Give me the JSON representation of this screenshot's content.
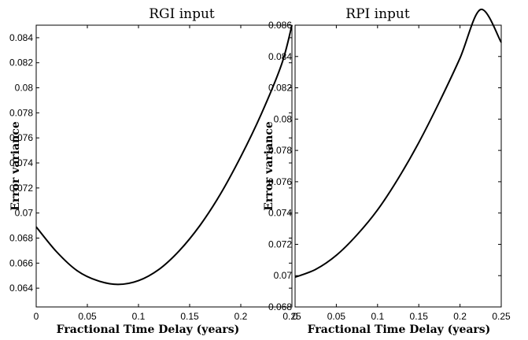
{
  "chart_data": [
    {
      "type": "line",
      "title": "RGI input",
      "xlabel": "Fractional Time Delay (years)",
      "ylabel": "Error variance",
      "xlim": [
        0,
        0.25
      ],
      "ylim": [
        0.0625,
        0.085
      ],
      "xticks": [
        "0",
        "0.05",
        "0.1",
        "0.15",
        "0.2",
        "0.25"
      ],
      "yticks": [
        "0.064",
        "0.066",
        "0.068",
        "0.07",
        "0.072",
        "0.074",
        "0.076",
        "0.078",
        "0.08",
        "0.082",
        "0.084"
      ],
      "grid": false,
      "series": [
        {
          "x": [
            0,
            0.02,
            0.04,
            0.06,
            0.08,
            0.1,
            0.12,
            0.14,
            0.16,
            0.18,
            0.2,
            0.22,
            0.24,
            0.25
          ],
          "y": [
            0.0689,
            0.0669,
            0.0654,
            0.0646,
            0.0643,
            0.0646,
            0.0655,
            0.067,
            0.069,
            0.0715,
            0.0745,
            0.0779,
            0.0819,
            0.085
          ]
        }
      ]
    },
    {
      "type": "line",
      "title": "RPI input",
      "xlabel": "Fractional Time Delay (years)",
      "ylabel": "Error variance",
      "xlim": [
        0,
        0.25
      ],
      "ylim": [
        0.068,
        0.086
      ],
      "xticks": [
        "0",
        "0.05",
        "0.1",
        "0.15",
        "0.2",
        "0.25"
      ],
      "yticks": [
        "0.068",
        "0.07",
        "0.072",
        "0.074",
        "0.076",
        "0.078",
        "0.08",
        "0.082",
        "0.084",
        "0.086"
      ],
      "grid": false,
      "series": [
        {
          "x": [
            0,
            0.025,
            0.05,
            0.075,
            0.1,
            0.125,
            0.15,
            0.175,
            0.2,
            0.225,
            0.25
          ],
          "y": [
            0.0699,
            0.0704,
            0.0713,
            0.0726,
            0.0742,
            0.0762,
            0.0785,
            0.0811,
            0.0839,
            0.087,
            0.0849
          ]
        }
      ]
    }
  ]
}
